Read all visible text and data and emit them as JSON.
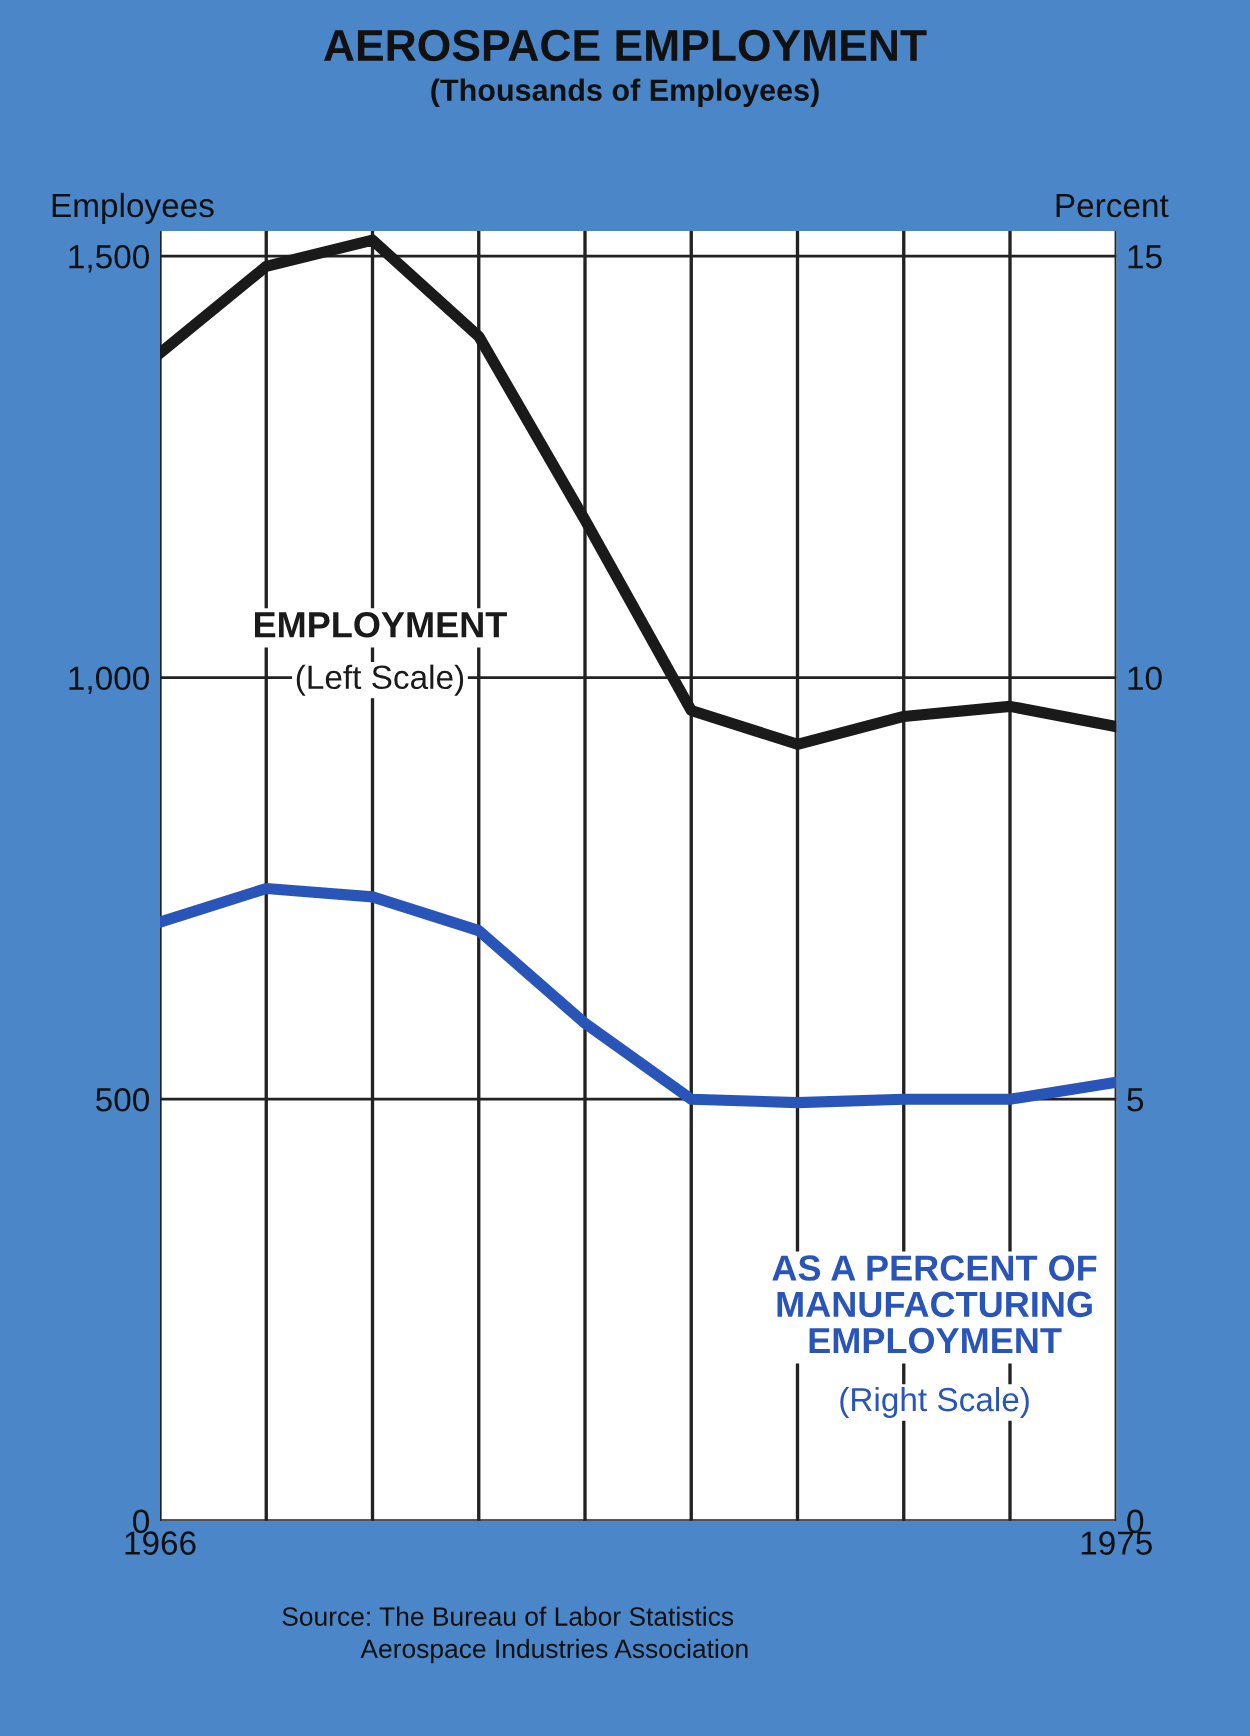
{
  "chart_data": {
    "type": "line",
    "title": "AEROSPACE EMPLOYMENT",
    "subtitle": "(Thousands of Employees)",
    "ylabel": "Employees",
    "y2label": "Percent",
    "x": [
      1966,
      1967,
      1968,
      1969,
      1970,
      1971,
      1972,
      1973,
      1974,
      1975
    ],
    "series": [
      {
        "name": "EMPLOYMENT",
        "color": "#1a1a1a",
        "values": [
          1385,
          1488,
          1519,
          1405,
          1187,
          961,
          921,
          954,
          966,
          942
        ]
      },
      {
        "name": "AS A PERCENT OF MANUFACTURING EMPLOYMENT",
        "color": "#2a55b8",
        "axis": "y2",
        "values": [
          7.1,
          7.5,
          7.4,
          7.0,
          5.9,
          5.0,
          4.96,
          5.0,
          5.0,
          5.2
        ]
      }
    ],
    "xlim": [
      1966,
      1975
    ],
    "xticks": [
      1966,
      {
        "value": 1967,
        "label": null
      },
      {
        "value": 1968,
        "label": null
      },
      {
        "value": 1969,
        "label": null
      },
      {
        "value": 1970,
        "label": null
      },
      {
        "value": 1971,
        "label": null
      },
      {
        "value": 1972,
        "label": null
      },
      {
        "value": 1973,
        "label": null
      },
      {
        "value": 1974,
        "label": null
      },
      1975
    ],
    "ylim": [
      0,
      1530
    ],
    "yticks": [
      0,
      500,
      {
        "value": 1000,
        "label": "1,000"
      },
      {
        "value": 1500,
        "label": "1,500"
      }
    ],
    "y2lim": [
      0,
      15.3
    ],
    "y2ticks": [
      0,
      5,
      10,
      15
    ],
    "grid": true,
    "legend": false,
    "marker": "none",
    "line_style": "solid",
    "annotations": [
      "(Left Scale)",
      "(Right Scale)",
      "Source: The Bureau of Labor Statistics\n           Aerospace Industries Association"
    ]
  }
}
